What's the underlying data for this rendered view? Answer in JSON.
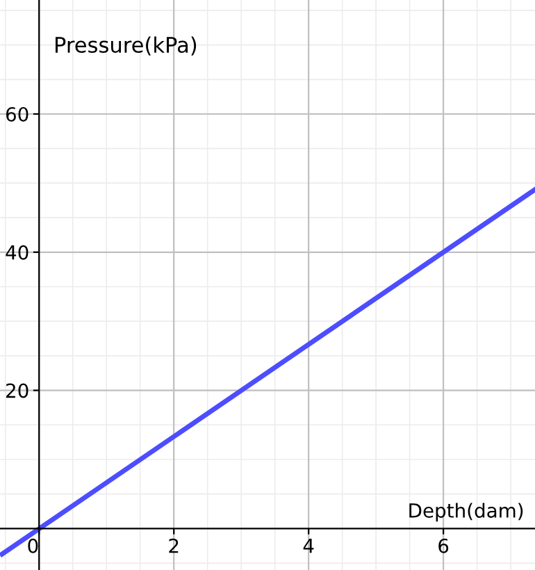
{
  "chart_data": {
    "type": "line",
    "xlabel": "Depth(dam)",
    "ylabel": "Pressure(kPa)",
    "series": [
      {
        "x": [
          -0.55,
          7.35
        ],
        "values": [
          -3.7,
          49
        ],
        "color": "#4d4dff"
      }
    ],
    "xlim": [
      -0.58,
      7.36
    ],
    "ylim": [
      -6,
      76.5
    ],
    "xticks": [
      0,
      2,
      4,
      6
    ],
    "yticks": [
      20,
      40,
      60
    ],
    "grid": true,
    "marker": "none",
    "line_style": "solid"
  }
}
